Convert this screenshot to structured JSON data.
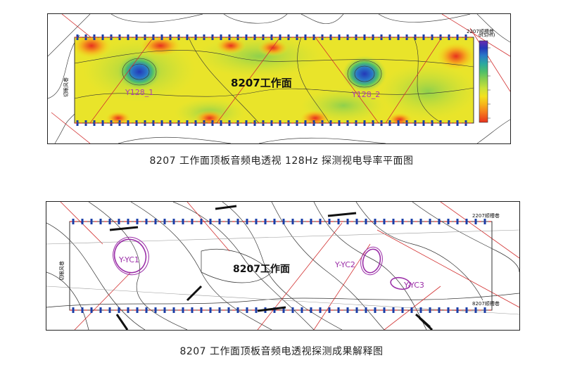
{
  "figure1": {
    "caption": "8207 工作面顶板音频电透视 128Hz 探测视电导率平面图",
    "face_label": "8207工作面",
    "anomalies": [
      "Y128_1",
      "Y128_2"
    ],
    "top_right_label": "2207顺槽巷",
    "left_label": "切眼风巷",
    "colorbar_title": "σ(S/m)",
    "colorbar_colors": [
      "#e8321e",
      "#f57a1e",
      "#f7b41c",
      "#f3e21e",
      "#c9e23a",
      "#8fd04c",
      "#4fbf6a",
      "#2aa8a0",
      "#2a78c8",
      "#2438b8",
      "#6a2ab0"
    ]
  },
  "figure2": {
    "caption": "8207 工作面顶板音频电透视探测成果解释图",
    "face_label": "8207工作面",
    "anomalies": [
      "Y-YC1",
      "Y-YC2",
      "Y-YC3"
    ],
    "top_right_label": "2207顺槽巷",
    "bottom_right_label": "8207顺槽巷",
    "left_label": "切眼风巷"
  }
}
